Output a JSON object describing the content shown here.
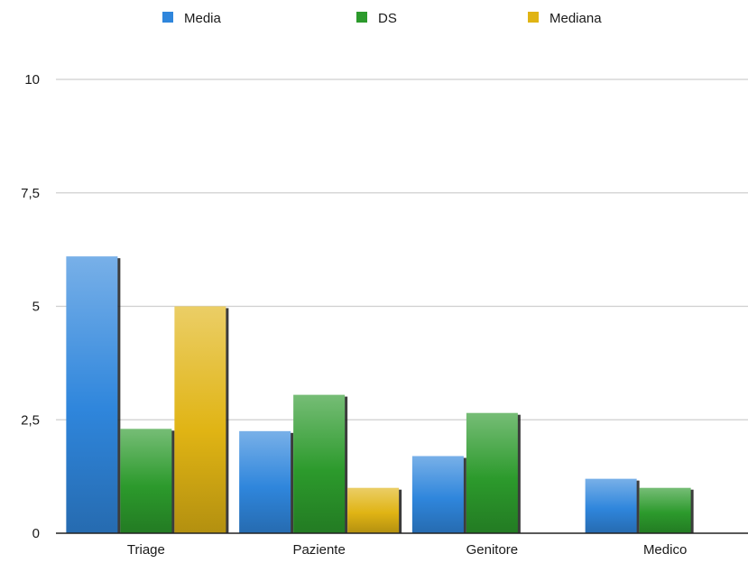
{
  "chart_data": {
    "type": "bar",
    "categories": [
      "Triage",
      "Paziente",
      "Genitore",
      "Medico"
    ],
    "series": [
      {
        "name": "Media",
        "values": [
          6.1,
          2.25,
          1.7,
          1.2
        ],
        "color": "#2f86dc"
      },
      {
        "name": "DS",
        "values": [
          2.3,
          3.05,
          2.65,
          1.0
        ],
        "color": "#2c9a2c"
      },
      {
        "name": "Mediana",
        "values": [
          5.0,
          1.0,
          0,
          0
        ],
        "color": "#e0b414"
      }
    ],
    "y_ticks": [
      "0",
      "2,5",
      "5",
      "7,5",
      "10"
    ],
    "y_tick_values": [
      0,
      2.5,
      5,
      7.5,
      10
    ],
    "ylim": [
      0,
      10
    ],
    "grid": true,
    "legend_position": "top"
  }
}
